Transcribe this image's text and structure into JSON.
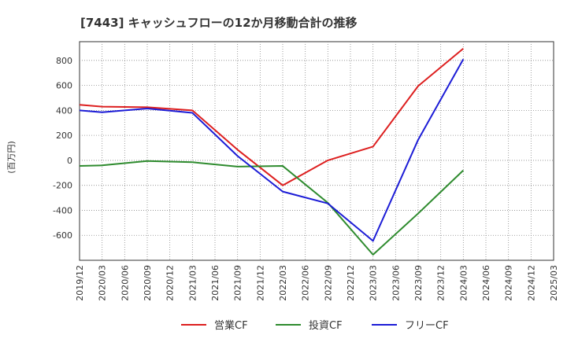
{
  "chart_data": {
    "type": "line",
    "title": "[7443]  キャッシュフローの12か月移動合計の推移",
    "ylabel": "(百万円)",
    "xlabel": "",
    "ylim": [
      -800,
      950
    ],
    "yticks": [
      800,
      600,
      400,
      200,
      0,
      -200,
      -400,
      -600
    ],
    "x_tick_labels": [
      "2019/12",
      "2020/03",
      "2020/06",
      "2020/09",
      "2020/12",
      "2021/03",
      "2021/06",
      "2021/09",
      "2021/12",
      "2022/03",
      "2022/06",
      "2022/09",
      "2022/12",
      "2023/03",
      "2023/06",
      "2023/09",
      "2023/12",
      "2024/03",
      "2024/06",
      "2024/09",
      "2024/12",
      "2025/03"
    ],
    "grid": true,
    "legend_position": "bottom",
    "series": [
      {
        "name": "営業CF",
        "color": "#dd1f1f",
        "points": [
          {
            "x": "2019/12",
            "y": 445
          },
          {
            "x": "2020/03",
            "y": 430
          },
          {
            "x": "2020/09",
            "y": 425
          },
          {
            "x": "2021/03",
            "y": 400
          },
          {
            "x": "2021/09",
            "y": 85
          },
          {
            "x": "2022/03",
            "y": -200
          },
          {
            "x": "2022/09",
            "y": 0
          },
          {
            "x": "2023/03",
            "y": 110
          },
          {
            "x": "2023/09",
            "y": 595
          },
          {
            "x": "2024/03",
            "y": 895
          }
        ]
      },
      {
        "name": "投資CF",
        "color": "#2e8b2e",
        "points": [
          {
            "x": "2019/12",
            "y": -45
          },
          {
            "x": "2020/03",
            "y": -40
          },
          {
            "x": "2020/09",
            "y": -5
          },
          {
            "x": "2021/03",
            "y": -15
          },
          {
            "x": "2021/09",
            "y": -50
          },
          {
            "x": "2022/03",
            "y": -45
          },
          {
            "x": "2022/09",
            "y": -340
          },
          {
            "x": "2023/03",
            "y": -755
          },
          {
            "x": "2023/09",
            "y": -425
          },
          {
            "x": "2024/03",
            "y": -80
          }
        ]
      },
      {
        "name": "フリーCF",
        "color": "#1c1cd6",
        "points": [
          {
            "x": "2019/12",
            "y": 400
          },
          {
            "x": "2020/03",
            "y": 385
          },
          {
            "x": "2020/09",
            "y": 415
          },
          {
            "x": "2021/03",
            "y": 380
          },
          {
            "x": "2021/09",
            "y": 35
          },
          {
            "x": "2022/03",
            "y": -250
          },
          {
            "x": "2022/09",
            "y": -345
          },
          {
            "x": "2023/03",
            "y": -645
          },
          {
            "x": "2023/09",
            "y": 165
          },
          {
            "x": "2024/03",
            "y": 810
          }
        ]
      }
    ]
  }
}
